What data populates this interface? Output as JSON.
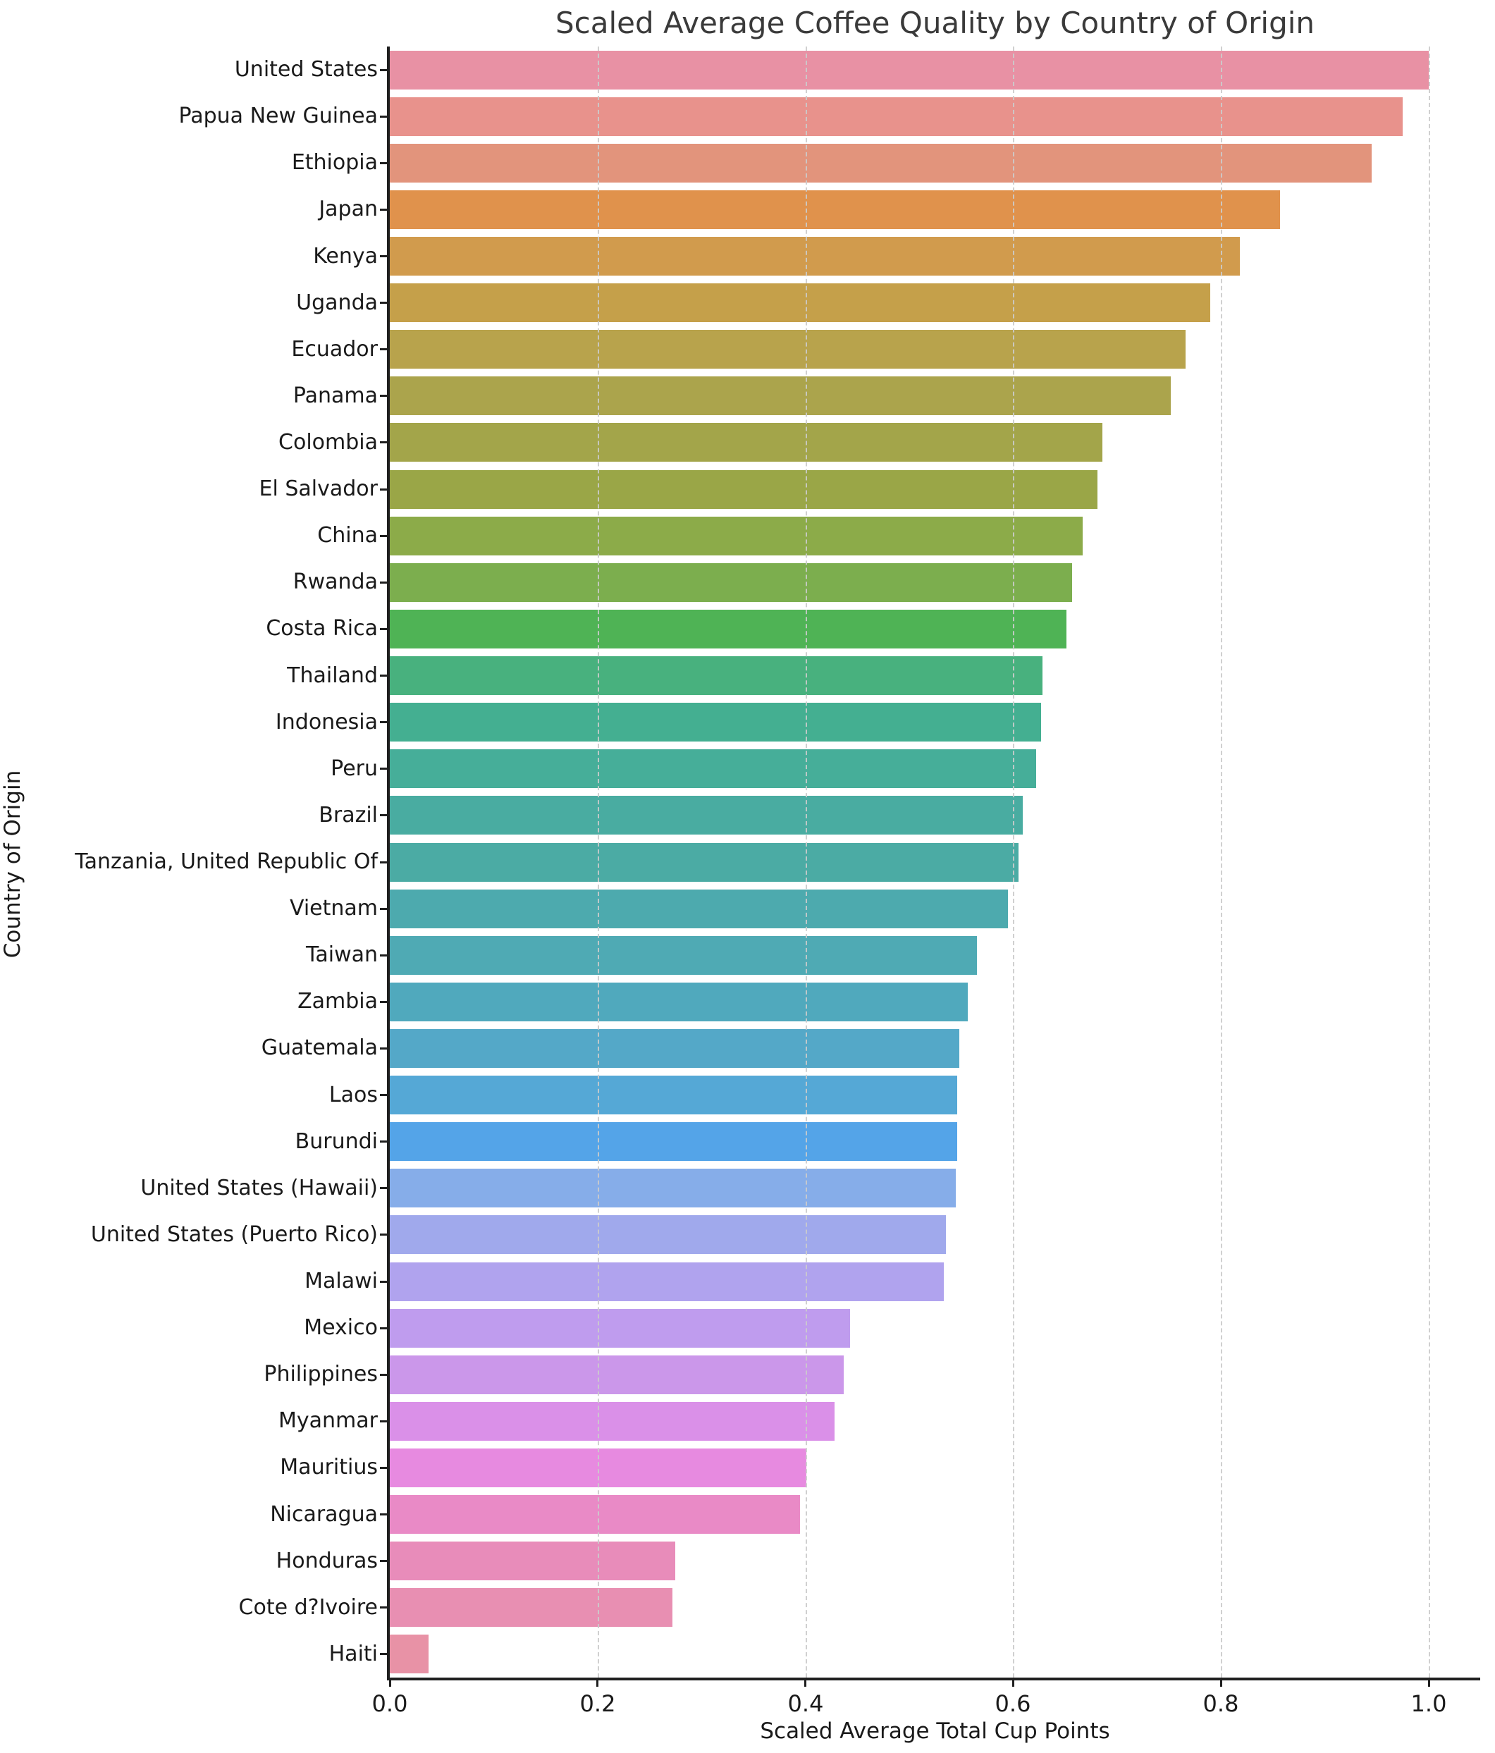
{
  "chart_data": {
    "type": "bar",
    "orientation": "horizontal",
    "title": "Scaled Average Coffee Quality by Country of Origin",
    "xlabel": "Scaled Average Total Cup Points",
    "ylabel": "Country of Origin",
    "xlim": [
      0,
      1.05
    ],
    "grid": "vertical-dashed",
    "x_ticks": [
      {
        "value": 0.0,
        "label": "0.0"
      },
      {
        "value": 0.2,
        "label": "0.2"
      },
      {
        "value": 0.4,
        "label": "0.4"
      },
      {
        "value": 0.6,
        "label": "0.6"
      },
      {
        "value": 0.8,
        "label": "0.8"
      },
      {
        "value": 1.0,
        "label": "1.0"
      }
    ],
    "categories": [
      "United States",
      "Papua New Guinea",
      "Ethiopia",
      "Japan",
      "Kenya",
      "Uganda",
      "Ecuador",
      "Panama",
      "Colombia",
      "El Salvador",
      "China",
      "Rwanda",
      "Costa Rica",
      "Thailand",
      "Indonesia",
      "Peru",
      "Brazil",
      "Tanzania, United Republic Of",
      "Vietnam",
      "Taiwan",
      "Zambia",
      "Guatemala",
      "Laos",
      "Burundi",
      "United States (Hawaii)",
      "United States (Puerto Rico)",
      "Malawi",
      "Mexico",
      "Philippines",
      "Myanmar",
      "Mauritius",
      "Nicaragua",
      "Honduras",
      "Cote d?Ivoire",
      "Haiti"
    ],
    "values": [
      1.0,
      0.975,
      0.945,
      0.857,
      0.818,
      0.79,
      0.766,
      0.752,
      0.686,
      0.681,
      0.667,
      0.657,
      0.651,
      0.628,
      0.627,
      0.622,
      0.609,
      0.605,
      0.595,
      0.565,
      0.556,
      0.548,
      0.546,
      0.546,
      0.545,
      0.535,
      0.533,
      0.443,
      0.437,
      0.428,
      0.401,
      0.395,
      0.275,
      0.272,
      0.037
    ],
    "bar_colors": [
      "#e891a4",
      "#e8928c",
      "#e2947c",
      "#e0924c",
      "#d19b4d",
      "#c5a04a",
      "#b8a34c",
      "#aba44c",
      "#a3a54a",
      "#9aa647",
      "#8cab49",
      "#7cae4e",
      "#4fb355",
      "#48b17e",
      "#44af91",
      "#46ae99",
      "#49aca1",
      "#4baba4",
      "#4daaae",
      "#4faab4",
      "#50a9bd",
      "#54a8c8",
      "#55a8d6",
      "#54a4e8",
      "#86ade9",
      "#a0a9ec",
      "#b0a3ee",
      "#bf9cee",
      "#cb97ea",
      "#da90e8",
      "#e78ae0",
      "#e98ac6",
      "#e88cba",
      "#e88fb2",
      "#e892a6"
    ]
  },
  "colors": {
    "background": "#ffffff",
    "title_text": "#3a3a3a",
    "tick_text": "#1a1a1a",
    "spine": "#1f1f1f",
    "gridline": "#cccccc"
  }
}
